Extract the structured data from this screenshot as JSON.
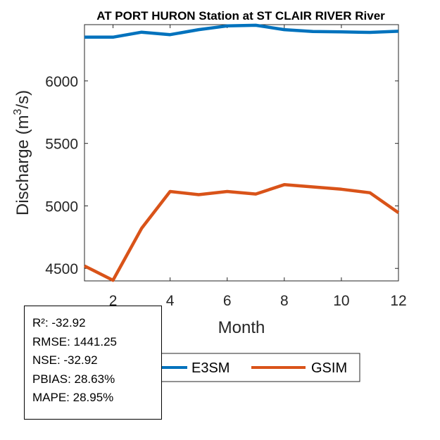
{
  "chart_data": {
    "type": "line",
    "title": "AT PORT HURON  Station at  ST CLAIR RIVER  River",
    "xlabel": "Month",
    "ylabel": "Discharge (m³/s)",
    "xlim": [
      1,
      12
    ],
    "ylim": [
      4400,
      6450
    ],
    "xticks": [
      2,
      4,
      6,
      8,
      10,
      12
    ],
    "yticks": [
      4500,
      5000,
      5500,
      6000
    ],
    "grid": false,
    "legend": "bottom",
    "x": [
      1,
      2,
      3,
      4,
      5,
      6,
      7,
      8,
      9,
      10,
      11,
      12
    ],
    "series": [
      {
        "name": "E3SM",
        "color": "#0072BD",
        "values": [
          6350,
          6350,
          6390,
          6370,
          6410,
          6440,
          6445,
          6410,
          6395,
          6392,
          6388,
          6397
        ]
      },
      {
        "name": "GSIM",
        "color": "#D95319",
        "values": [
          4520,
          4405,
          4820,
          5115,
          5090,
          5115,
          5095,
          5170,
          5152,
          5133,
          5105,
          4945
        ]
      }
    ]
  },
  "stats": {
    "lines": [
      "R²: -32.92",
      "RMSE: 1441.25",
      "NSE: -32.92",
      "PBIAS: 28.63%",
      "MAPE: 28.95%"
    ]
  }
}
